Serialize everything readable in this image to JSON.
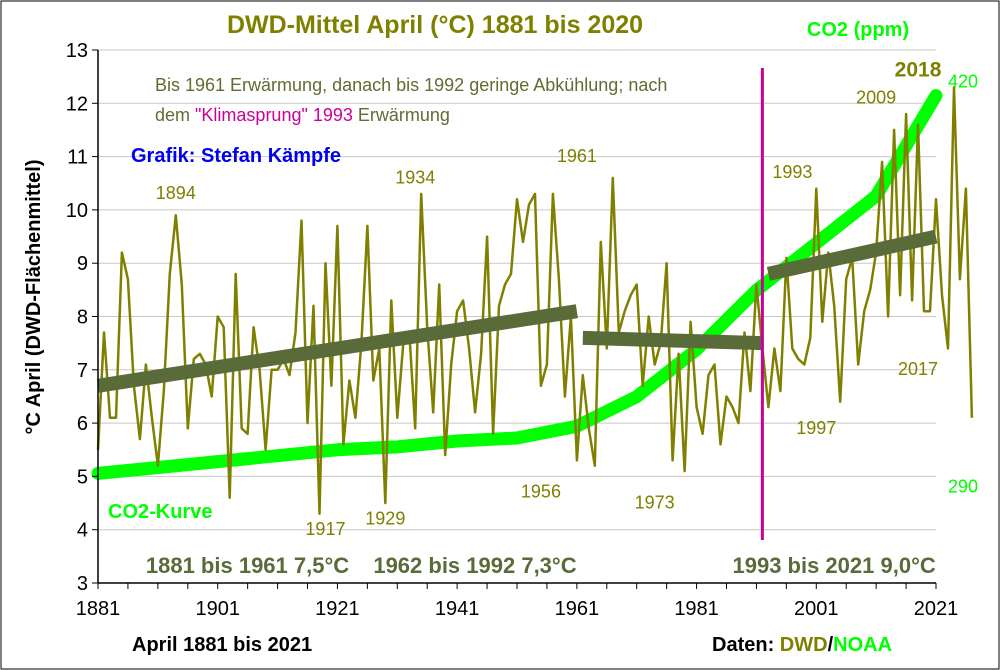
{
  "chart_data": {
    "type": "line",
    "title": "DWD-Mittel April (°C) 1881 bis 2020",
    "co2_axis_title": "CO2 (ppm)",
    "ylabel": "°C April (DWD-Flächenmittel)",
    "xlabel": "April 1881 bis 2021",
    "ylim": [
      3,
      13
    ],
    "xlim": [
      1881,
      2021
    ],
    "y_ticks": [
      "3",
      "4",
      "5",
      "6",
      "7",
      "8",
      "9",
      "10",
      "11",
      "12",
      "13"
    ],
    "x_ticks": [
      "1881",
      "1901",
      "1921",
      "1941",
      "1961",
      "1981",
      "2001",
      "2021"
    ],
    "grid": "horizontal",
    "annotation_lines": [
      "Bis 1961 Erwärmung, danach bis 1992 geringe Abkühlung; nach",
      "dem ",
      "\"Klimasprung\" 1993",
      "  Erwärmung"
    ],
    "credit": "Grafik: Stefan Kämpfe",
    "colors": {
      "temperature": "#808000",
      "co2": "#00ff00",
      "trend": "#5a6b3a",
      "marker_1993": "#cc0099",
      "credit": "#0000ee"
    },
    "series": [
      {
        "name": "",
        "color": "#808000",
        "x_start": 1881,
        "values": [
          5.5,
          7.7,
          6.1,
          6.1,
          9.2,
          8.7,
          6.7,
          5.7,
          7.1,
          6.1,
          5.2,
          6.6,
          8.8,
          9.9,
          8.6,
          5.9,
          7.2,
          7.3,
          7.1,
          6.5,
          8.0,
          7.8,
          4.6,
          8.8,
          5.9,
          5.8,
          7.8,
          7.0,
          5.5,
          7.0,
          7.0,
          7.2,
          6.9,
          7.7,
          9.8,
          6.0,
          8.2,
          4.3,
          9.0,
          6.7,
          9.7,
          5.6,
          6.8,
          6.1,
          7.5,
          9.7,
          6.8,
          7.4,
          4.5,
          8.3,
          6.1,
          7.5,
          7.7,
          5.9,
          10.3,
          7.8,
          6.2,
          8.6,
          5.4,
          7.1,
          8.1,
          8.3,
          7.4,
          6.2,
          7.3,
          9.5,
          5.8,
          8.2,
          8.6,
          8.8,
          10.2,
          9.4,
          10.1,
          10.3,
          6.7,
          7.1,
          10.3,
          8.7,
          6.5,
          8.0,
          5.3,
          6.9,
          5.9,
          5.2,
          9.4,
          7.4,
          10.6,
          7.7,
          8.1,
          8.4,
          8.6,
          6.7,
          8.0,
          7.1,
          7.5,
          9.0,
          5.3,
          7.3,
          5.1,
          7.9,
          6.3,
          5.8,
          6.9,
          7.1,
          5.6,
          6.5,
          6.3,
          6.0,
          7.7,
          6.6,
          8.6,
          7.4,
          6.3,
          7.4,
          6.6,
          9.1,
          7.4,
          7.2,
          7.1,
          7.6,
          10.4,
          7.9,
          9.2,
          8.2,
          6.4,
          8.7,
          9.1,
          7.1,
          8.1,
          8.5,
          9.2,
          10.9,
          8.0,
          11.5,
          8.4,
          11.8,
          8.3,
          11.6,
          8.1,
          8.1,
          10.2,
          8.4,
          7.4,
          12.3,
          8.7,
          10.4,
          6.1
        ]
      },
      {
        "name": "CO2-Kurve",
        "color": "#00ff00",
        "axis": "right",
        "axis_range_ppm": [
          290,
          420
        ],
        "x": [
          1881,
          1901,
          1921,
          1931,
          1941,
          1951,
          1961,
          1971,
          1981,
          1991,
          2001,
          2011,
          2021
        ],
        "values_ppm": [
          291,
          295,
          299,
          300,
          302,
          303,
          307,
          317,
          333,
          353,
          369,
          385,
          419
        ]
      },
      {
        "name": "1881 bis 1961 7,5°C",
        "kind": "trend",
        "color": "#5a6b3a",
        "x": [
          1881,
          1961
        ],
        "values": [
          6.7,
          8.1
        ]
      },
      {
        "name": "1962 bis 1992 7,3°C",
        "kind": "trend",
        "color": "#5a6b3a",
        "x": [
          1962,
          1992
        ],
        "values": [
          7.6,
          7.5
        ]
      },
      {
        "name": "1993 bis 2021 9,0°C",
        "kind": "trend",
        "color": "#5a6b3a",
        "x": [
          1993,
          2021
        ],
        "values": [
          8.8,
          9.5
        ]
      }
    ],
    "vertical_marker": {
      "x": 1993,
      "color": "#cc0099"
    },
    "year_labels": [
      {
        "text": "1894",
        "x": 1894,
        "y": 10.2,
        "style": "normal"
      },
      {
        "text": "1917",
        "x": 1919,
        "y": 3.9,
        "style": "normal"
      },
      {
        "text": "1929",
        "x": 1929,
        "y": 4.1,
        "style": "normal"
      },
      {
        "text": "1934",
        "x": 1934,
        "y": 10.5,
        "style": "normal"
      },
      {
        "text": "1956",
        "x": 1955,
        "y": 4.6,
        "style": "normal"
      },
      {
        "text": "1961",
        "x": 1961,
        "y": 10.9,
        "style": "normal"
      },
      {
        "text": "1973",
        "x": 1974,
        "y": 4.4,
        "style": "normal"
      },
      {
        "text": "1993",
        "x": 1997,
        "y": 10.6,
        "style": "normal"
      },
      {
        "text": "1997",
        "x": 2001,
        "y": 5.8,
        "style": "normal"
      },
      {
        "text": "2009",
        "x": 2011,
        "y": 12.0,
        "style": "normal"
      },
      {
        "text": "2017",
        "x": 2018,
        "y": 6.9,
        "style": "normal"
      },
      {
        "text": "2018",
        "x": 2018,
        "y": 12.5,
        "style": "bold"
      }
    ],
    "co2_labels": [
      {
        "text": "420",
        "y": 12.3
      },
      {
        "text": "290",
        "y": 4.7
      }
    ],
    "co2_curve_label": "CO2-Kurve",
    "period_labels": [
      {
        "text": "1881 bis 1961  7,5°C",
        "x": 1889
      },
      {
        "text": "1962 bis 1992  7,3°C",
        "x": 1927
      },
      {
        "text": "1993 bis 2021  9,0°C",
        "x": 1987
      }
    ],
    "source": {
      "prefix": "Daten: ",
      "dwd": "DWD",
      "sep": "/",
      "noaa": "NOAA"
    }
  }
}
